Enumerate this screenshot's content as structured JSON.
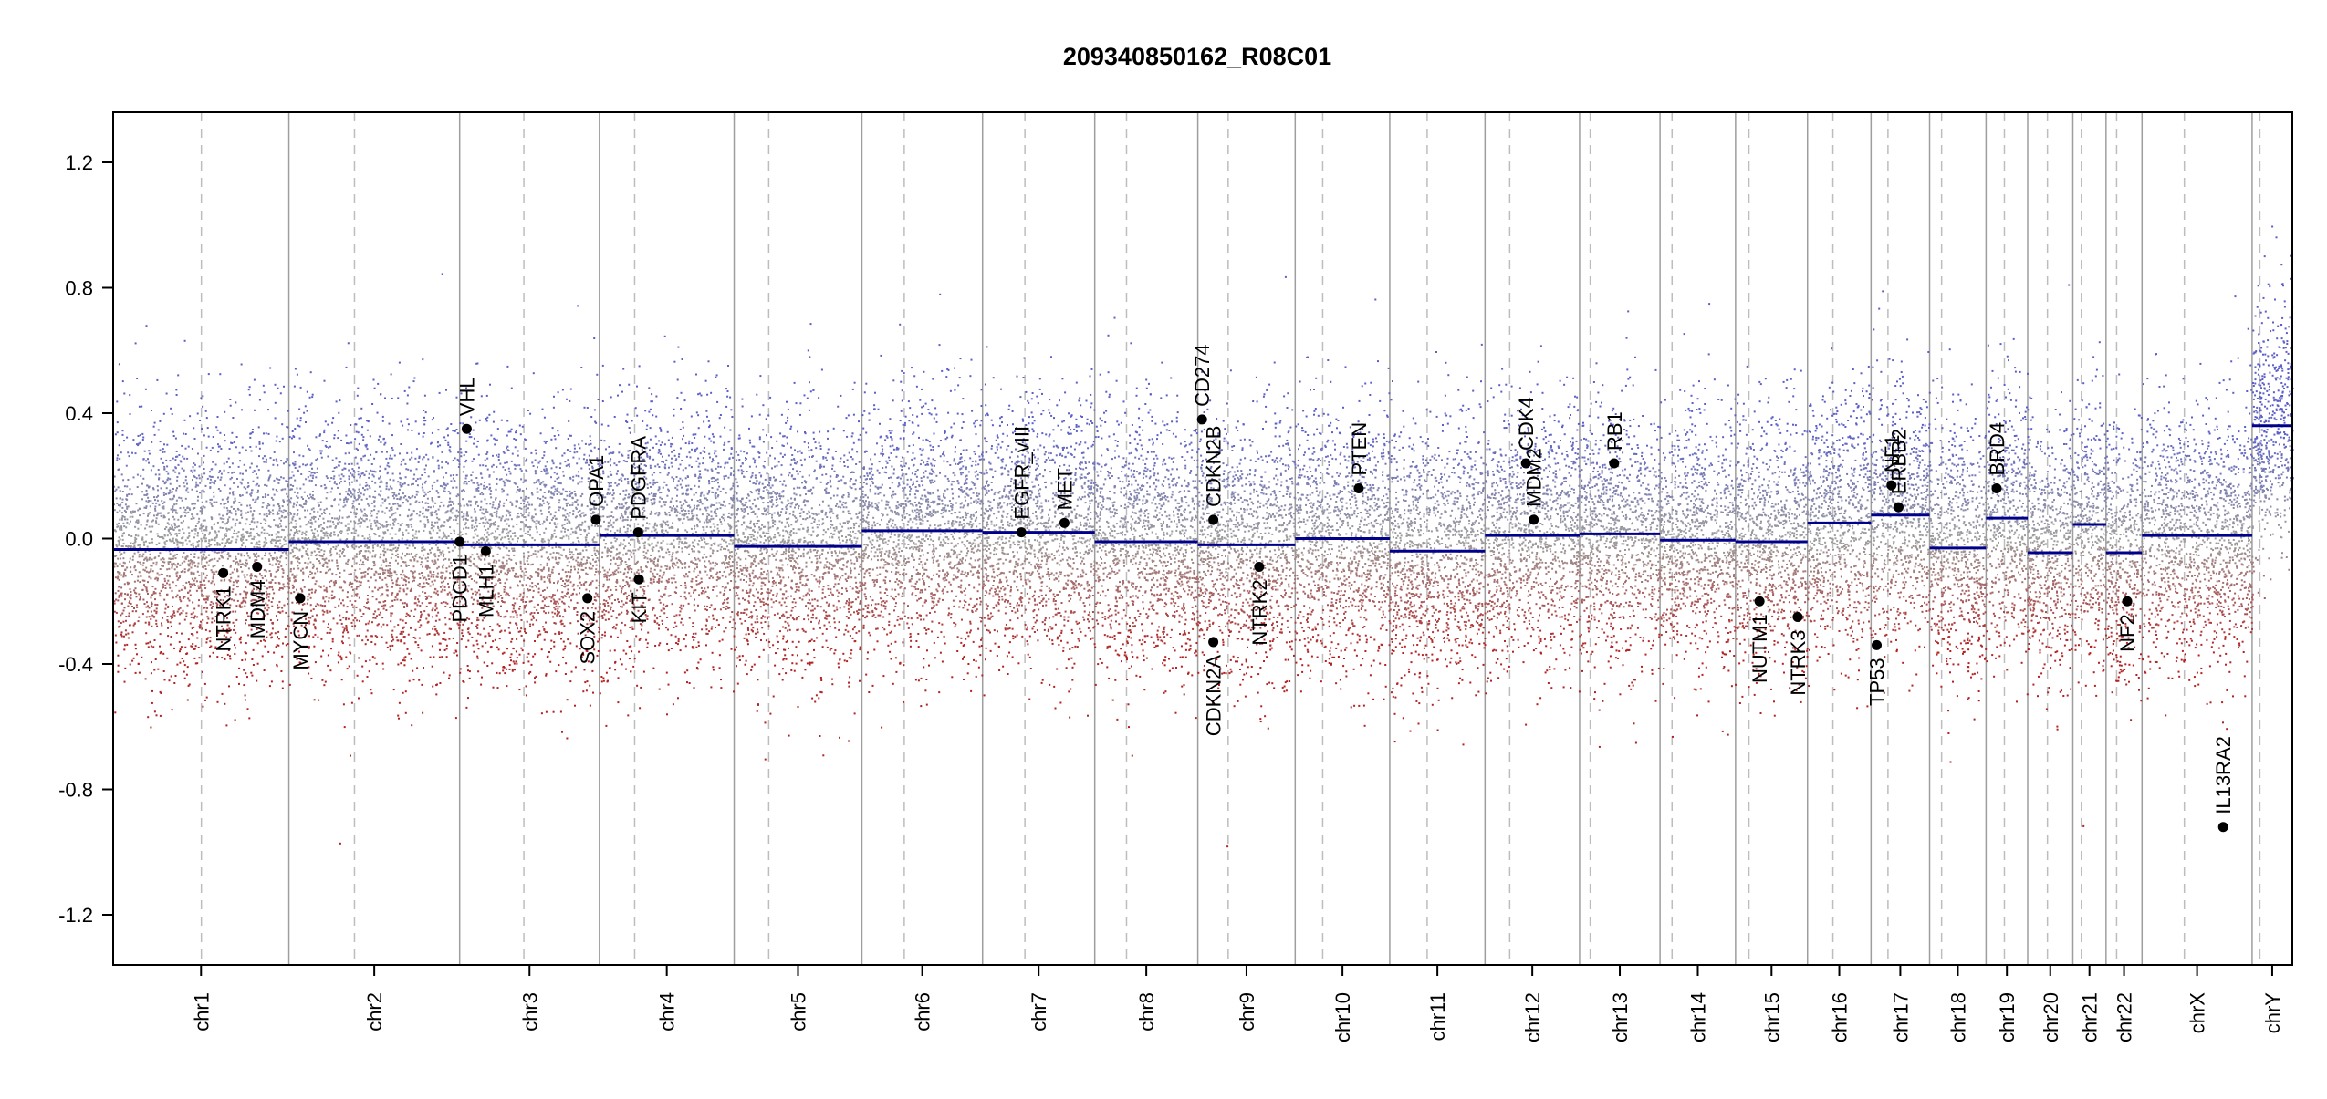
{
  "chart_data": {
    "type": "scatter",
    "title": "209340850162_R08C01",
    "xlabel": "",
    "ylabel": "",
    "ylim": [
      -1.36,
      1.36
    ],
    "yticks": [
      -1.2,
      -0.8,
      -0.4,
      0.0,
      0.4,
      0.8,
      1.2
    ],
    "ytick_labels": [
      "-1.2",
      "-0.8",
      "-0.4",
      "0.0",
      "0.4",
      "0.8",
      "1.2"
    ],
    "grid": false,
    "legend": "none",
    "colors": {
      "gain": "#5b5fc7",
      "loss": "#b22222",
      "neutral": "#9e9e9e",
      "segment": "#00008b",
      "gene": "#000000",
      "chr_boundary": "#9e9e9e",
      "centromere": "#bdbdbd"
    },
    "x_unit": "genome position (Mb)",
    "chromosomes": [
      {
        "name": "chr1",
        "start": 0,
        "end": 249,
        "centromere": 125
      },
      {
        "name": "chr2",
        "start": 249,
        "end": 491,
        "centromere": 342
      },
      {
        "name": "chr3",
        "start": 491,
        "end": 689,
        "centromere": 582
      },
      {
        "name": "chr4",
        "start": 689,
        "end": 880,
        "centromere": 739
      },
      {
        "name": "chr5",
        "start": 880,
        "end": 1061,
        "centromere": 929
      },
      {
        "name": "chr6",
        "start": 1061,
        "end": 1232,
        "centromere": 1121
      },
      {
        "name": "chr7",
        "start": 1232,
        "end": 1391,
        "centromere": 1292
      },
      {
        "name": "chr8",
        "start": 1391,
        "end": 1537,
        "centromere": 1436
      },
      {
        "name": "chr9",
        "start": 1537,
        "end": 1675,
        "centromere": 1580
      },
      {
        "name": "chr10",
        "start": 1675,
        "end": 1809,
        "centromere": 1714
      },
      {
        "name": "chr11",
        "start": 1809,
        "end": 1944,
        "centromere": 1862
      },
      {
        "name": "chr12",
        "start": 1944,
        "end": 2078,
        "centromere": 1979
      },
      {
        "name": "chr13",
        "start": 2078,
        "end": 2192,
        "centromere": 2093
      },
      {
        "name": "chr14",
        "start": 2192,
        "end": 2299,
        "centromere": 2209
      },
      {
        "name": "chr15",
        "start": 2299,
        "end": 2401,
        "centromere": 2318
      },
      {
        "name": "chr16",
        "start": 2401,
        "end": 2491,
        "centromere": 2437
      },
      {
        "name": "chr17",
        "start": 2491,
        "end": 2574,
        "centromere": 2515
      },
      {
        "name": "chr18",
        "start": 2574,
        "end": 2654,
        "centromere": 2591
      },
      {
        "name": "chr19",
        "start": 2654,
        "end": 2713,
        "centromere": 2680
      },
      {
        "name": "chr20",
        "start": 2713,
        "end": 2777,
        "centromere": 2741
      },
      {
        "name": "chr21",
        "start": 2777,
        "end": 2824,
        "centromere": 2789
      },
      {
        "name": "chr22",
        "start": 2824,
        "end": 2875,
        "centromere": 2839
      },
      {
        "name": "chrX",
        "start": 2875,
        "end": 3031,
        "centromere": 2935
      },
      {
        "name": "chrY",
        "start": 3031,
        "end": 3088,
        "centromere": 3042
      }
    ],
    "segments": [
      {
        "chr": "chr1",
        "start": 0,
        "end": 249,
        "value": -0.035
      },
      {
        "chr": "chr2",
        "start": 249,
        "end": 491,
        "value": -0.01
      },
      {
        "chr": "chr3",
        "start": 491,
        "end": 689,
        "value": -0.02
      },
      {
        "chr": "chr4",
        "start": 689,
        "end": 880,
        "value": 0.01
      },
      {
        "chr": "chr5",
        "start": 880,
        "end": 1061,
        "value": -0.025
      },
      {
        "chr": "chr6",
        "start": 1061,
        "end": 1232,
        "value": 0.025
      },
      {
        "chr": "chr7",
        "start": 1232,
        "end": 1391,
        "value": 0.02
      },
      {
        "chr": "chr8",
        "start": 1391,
        "end": 1537,
        "value": -0.01
      },
      {
        "chr": "chr9",
        "start": 1537,
        "end": 1675,
        "value": -0.02
      },
      {
        "chr": "chr10",
        "start": 1675,
        "end": 1809,
        "value": 0.0
      },
      {
        "chr": "chr11",
        "start": 1809,
        "end": 1944,
        "value": -0.04
      },
      {
        "chr": "chr12",
        "start": 1944,
        "end": 2078,
        "value": 0.01
      },
      {
        "chr": "chr13",
        "start": 2078,
        "end": 2192,
        "value": 0.015
      },
      {
        "chr": "chr14",
        "start": 2192,
        "end": 2299,
        "value": -0.005
      },
      {
        "chr": "chr15",
        "start": 2299,
        "end": 2401,
        "value": -0.01
      },
      {
        "chr": "chr16",
        "start": 2401,
        "end": 2491,
        "value": 0.05
      },
      {
        "chr": "chr17",
        "start": 2491,
        "end": 2574,
        "value": 0.075
      },
      {
        "chr": "chr18",
        "start": 2574,
        "end": 2654,
        "value": -0.03
      },
      {
        "chr": "chr19",
        "start": 2654,
        "end": 2713,
        "value": 0.065
      },
      {
        "chr": "chr20",
        "start": 2713,
        "end": 2777,
        "value": -0.045
      },
      {
        "chr": "chr21",
        "start": 2777,
        "end": 2824,
        "value": 0.045
      },
      {
        "chr": "chr22",
        "start": 2824,
        "end": 2875,
        "value": -0.045
      },
      {
        "chr": "chrX",
        "start": 2875,
        "end": 3031,
        "value": 0.01
      },
      {
        "chr": "chrY",
        "start": 3031,
        "end": 3088,
        "value": 0.36
      }
    ],
    "genes": [
      {
        "name": "NTRK1",
        "pos": 156,
        "value": -0.11,
        "label": "below"
      },
      {
        "name": "MDM4",
        "pos": 204,
        "value": -0.09,
        "label": "below"
      },
      {
        "name": "MYCN",
        "pos": 265,
        "value": -0.19,
        "label": "below"
      },
      {
        "name": "PDCD1",
        "pos": 491,
        "value": -0.01,
        "label": "below"
      },
      {
        "name": "VHL",
        "pos": 501,
        "value": 0.35,
        "label": "above"
      },
      {
        "name": "MLH1",
        "pos": 528,
        "value": -0.04,
        "label": "below"
      },
      {
        "name": "SOX2",
        "pos": 672,
        "value": -0.19,
        "label": "below"
      },
      {
        "name": "OPA1",
        "pos": 684,
        "value": 0.06,
        "label": "above"
      },
      {
        "name": "PDGFRA",
        "pos": 744,
        "value": 0.02,
        "label": "above"
      },
      {
        "name": "KIT",
        "pos": 745,
        "value": -0.13,
        "label": "below"
      },
      {
        "name": "EGFR_vIII",
        "pos": 1287,
        "value": 0.02,
        "label": "above"
      },
      {
        "name": "MET",
        "pos": 1348,
        "value": 0.05,
        "label": "above"
      },
      {
        "name": "CD274",
        "pos": 1543,
        "value": 0.38,
        "label": "above"
      },
      {
        "name": "CDKN2B",
        "pos": 1559,
        "value": 0.06,
        "label": "above"
      },
      {
        "name": "CDKN2A",
        "pos": 1559,
        "value": -0.33,
        "label": "below"
      },
      {
        "name": "NTRK2",
        "pos": 1624,
        "value": -0.09,
        "label": "below"
      },
      {
        "name": "PTEN",
        "pos": 1765,
        "value": 0.16,
        "label": "above"
      },
      {
        "name": "CDK4",
        "pos": 2002,
        "value": 0.24,
        "label": "above"
      },
      {
        "name": "MDM2",
        "pos": 2013,
        "value": 0.06,
        "label": "above"
      },
      {
        "name": "RB1",
        "pos": 2127,
        "value": 0.24,
        "label": "above"
      },
      {
        "name": "NUTM1",
        "pos": 2333,
        "value": -0.2,
        "label": "below"
      },
      {
        "name": "NTRK3",
        "pos": 2387,
        "value": -0.25,
        "label": "below"
      },
      {
        "name": "TP53",
        "pos": 2499,
        "value": -0.34,
        "label": "below"
      },
      {
        "name": "NF1",
        "pos": 2520,
        "value": 0.17,
        "label": "above"
      },
      {
        "name": "ERBB2",
        "pos": 2530,
        "value": 0.1,
        "label": "above"
      },
      {
        "name": "BRD4",
        "pos": 2669,
        "value": 0.16,
        "label": "above"
      },
      {
        "name": "NF2",
        "pos": 2854,
        "value": -0.2,
        "label": "below"
      },
      {
        "name": "IL13RA2",
        "pos": 2990,
        "value": -0.92,
        "label": "above"
      }
    ]
  }
}
